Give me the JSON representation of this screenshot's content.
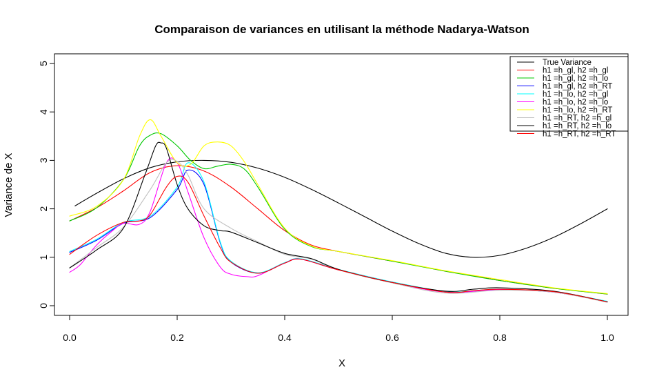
{
  "chart_data": {
    "type": "line",
    "title": "Comparaison de variances en utilisant la méthode Nadarya-Watson",
    "xlabel": "X",
    "ylabel": "Variance de X",
    "xlim": [
      0,
      1
    ],
    "ylim": [
      0,
      5
    ],
    "x_ticks": [
      "0.0",
      "0.2",
      "0.4",
      "0.6",
      "0.8",
      "1.0"
    ],
    "y_ticks": [
      "0",
      "1",
      "2",
      "3",
      "4",
      "5"
    ],
    "grid": false,
    "legend_position": "top-right",
    "series": [
      {
        "name": "True Variance",
        "color": "#000000",
        "x": [
          0.01,
          0.05,
          0.1,
          0.15,
          0.2,
          0.25,
          0.3,
          0.35,
          0.4,
          0.45,
          0.5,
          0.55,
          0.6,
          0.65,
          0.7,
          0.75,
          0.8,
          0.85,
          0.9,
          0.95,
          1.0
        ],
        "y": [
          2.06,
          2.32,
          2.62,
          2.85,
          2.97,
          3.0,
          2.96,
          2.84,
          2.65,
          2.4,
          2.12,
          1.83,
          1.54,
          1.28,
          1.08,
          1.0,
          1.04,
          1.19,
          1.41,
          1.69,
          2.0
        ]
      },
      {
        "name": "h1 =h_gl, h2 =h_gl",
        "color": "#ff0000",
        "x": [
          0.0,
          0.05,
          0.1,
          0.15,
          0.2,
          0.25,
          0.3,
          0.35,
          0.4,
          0.45,
          0.5,
          0.55,
          0.6,
          0.65,
          0.7,
          0.75,
          0.8,
          0.85,
          0.9,
          0.95,
          1.0
        ],
        "y": [
          1.75,
          2.02,
          2.37,
          2.75,
          2.89,
          2.78,
          2.45,
          2.0,
          1.55,
          1.25,
          1.12,
          1.02,
          0.92,
          0.82,
          0.71,
          0.62,
          0.52,
          0.44,
          0.36,
          0.3,
          0.24
        ]
      },
      {
        "name": "h1 =h_gl, h2 =h_lo",
        "color": "#00c800",
        "x": [
          0.0,
          0.05,
          0.1,
          0.13,
          0.15,
          0.17,
          0.2,
          0.225,
          0.25,
          0.275,
          0.3,
          0.325,
          0.35,
          0.4,
          0.45,
          0.5,
          0.6,
          0.7,
          0.8,
          0.9,
          1.0
        ],
        "y": [
          1.75,
          2.02,
          2.6,
          3.3,
          3.52,
          3.55,
          3.3,
          3.0,
          2.83,
          2.88,
          2.92,
          2.82,
          2.45,
          1.58,
          1.22,
          1.12,
          0.92,
          0.71,
          0.52,
          0.36,
          0.24
        ]
      },
      {
        "name": "h1 =h_gl, h2 =h_RT",
        "color": "#0000ff",
        "x": [
          0.0,
          0.05,
          0.1,
          0.15,
          0.2,
          0.22,
          0.25,
          0.28,
          0.3,
          0.35,
          0.4,
          0.43,
          0.5,
          0.6,
          0.7,
          0.75,
          0.8,
          0.9,
          1.0
        ],
        "y": [
          1.1,
          1.35,
          1.7,
          1.82,
          2.4,
          2.8,
          2.5,
          1.3,
          0.9,
          0.67,
          0.88,
          0.96,
          0.74,
          0.48,
          0.28,
          0.3,
          0.33,
          0.28,
          0.08
        ]
      },
      {
        "name": "h1 =h_lo, h2 =h_gl",
        "color": "#00ffff",
        "x": [
          0.0,
          0.05,
          0.1,
          0.15,
          0.2,
          0.22,
          0.25,
          0.28,
          0.3,
          0.35,
          0.4,
          0.43,
          0.5,
          0.6,
          0.7,
          0.75,
          0.8,
          0.9,
          1.0
        ],
        "y": [
          1.12,
          1.37,
          1.72,
          1.85,
          2.45,
          2.95,
          2.55,
          1.32,
          0.92,
          0.68,
          0.89,
          0.97,
          0.75,
          0.49,
          0.29,
          0.31,
          0.34,
          0.29,
          0.09
        ]
      },
      {
        "name": "h1 =h_lo, h2 =h_lo",
        "color": "#ff00ff",
        "x": [
          0.0,
          0.02,
          0.05,
          0.08,
          0.1,
          0.13,
          0.15,
          0.18,
          0.2,
          0.22,
          0.25,
          0.28,
          0.3,
          0.33,
          0.35,
          0.4,
          0.43,
          0.5,
          0.6,
          0.7,
          0.8,
          0.9,
          1.0
        ],
        "y": [
          0.69,
          0.85,
          1.25,
          1.55,
          1.7,
          1.68,
          1.95,
          2.95,
          2.95,
          2.35,
          1.4,
          0.8,
          0.65,
          0.6,
          0.62,
          0.88,
          0.96,
          0.74,
          0.48,
          0.28,
          0.33,
          0.28,
          0.08
        ]
      },
      {
        "name": "h1 =h_lo, h2 =h_RT",
        "color": "#ffff00",
        "x": [
          0.0,
          0.05,
          0.1,
          0.13,
          0.15,
          0.17,
          0.2,
          0.225,
          0.25,
          0.275,
          0.3,
          0.325,
          0.35,
          0.4,
          0.45,
          0.5,
          0.6,
          0.7,
          0.8,
          0.9,
          1.0
        ],
        "y": [
          1.85,
          2.05,
          2.6,
          3.5,
          3.84,
          3.5,
          2.95,
          2.92,
          3.3,
          3.38,
          3.3,
          2.97,
          2.5,
          1.6,
          1.23,
          1.12,
          0.93,
          0.72,
          0.54,
          0.37,
          0.25
        ]
      },
      {
        "name": "h1 =h_RT, h2 =h_gl",
        "color": "#c0c0c0",
        "x": [
          0.0,
          0.05,
          0.1,
          0.15,
          0.18,
          0.2,
          0.22,
          0.25,
          0.3,
          0.35,
          0.4,
          0.45,
          0.5,
          0.6,
          0.7,
          0.8,
          0.9,
          1.0
        ],
        "y": [
          0.78,
          1.2,
          1.62,
          2.4,
          2.95,
          2.98,
          2.7,
          2.0,
          1.6,
          1.32,
          1.06,
          0.96,
          0.74,
          0.47,
          0.26,
          0.32,
          0.28,
          0.07
        ]
      },
      {
        "name": "h1 =h_RT, h2 =h_lo",
        "color": "#000000",
        "x": [
          0.0,
          0.05,
          0.1,
          0.14,
          0.16,
          0.17,
          0.18,
          0.2,
          0.22,
          0.25,
          0.28,
          0.3,
          0.35,
          0.4,
          0.45,
          0.5,
          0.6,
          0.7,
          0.75,
          0.8,
          0.9,
          1.0
        ],
        "y": [
          0.78,
          1.15,
          1.6,
          2.7,
          3.3,
          3.36,
          3.25,
          2.5,
          2.0,
          1.65,
          1.55,
          1.52,
          1.3,
          1.08,
          0.97,
          0.75,
          0.48,
          0.3,
          0.34,
          0.37,
          0.3,
          0.08
        ]
      },
      {
        "name": "h1 =h_RT, h2 =h_RT",
        "color": "#ff0000",
        "x": [
          0.0,
          0.05,
          0.1,
          0.13,
          0.15,
          0.18,
          0.2,
          0.22,
          0.25,
          0.28,
          0.3,
          0.35,
          0.4,
          0.43,
          0.5,
          0.6,
          0.7,
          0.75,
          0.8,
          0.9,
          1.0
        ],
        "y": [
          1.06,
          1.45,
          1.72,
          1.75,
          1.88,
          2.45,
          2.67,
          2.55,
          1.85,
          1.2,
          0.9,
          0.67,
          0.88,
          0.96,
          0.74,
          0.48,
          0.28,
          0.31,
          0.34,
          0.29,
          0.08
        ]
      }
    ]
  }
}
